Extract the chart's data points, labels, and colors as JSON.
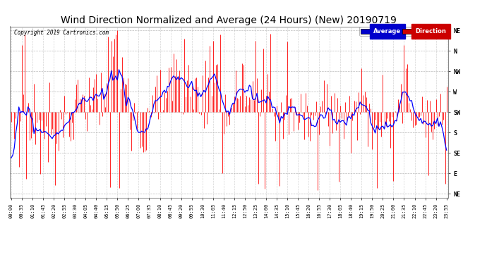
{
  "title": "Wind Direction Normalized and Average (24 Hours) (New) 20190719",
  "copyright": "Copyright 2019 Cartronics.com",
  "title_fontsize": 10,
  "bg_color": "#ffffff",
  "plot_bg_color": "#ffffff",
  "grid_color": "#aaaaaa",
  "ytick_labels": [
    "NE",
    "N",
    "NW",
    "W",
    "SW",
    "S",
    "SE",
    "E",
    "NE"
  ],
  "ytick_values": [
    8,
    7,
    6,
    5,
    4,
    3,
    2,
    1,
    0
  ],
  "ylim": [
    -0.2,
    8.2
  ],
  "legend_labels": [
    "Average",
    "Direction"
  ],
  "legend_bg_colors": [
    "#0000cc",
    "#cc0000"
  ],
  "line_color": "#0000ff",
  "bar_color": "#ff0000",
  "num_points": 288,
  "tick_step_minutes": 35,
  "minutes_per_point": 5
}
